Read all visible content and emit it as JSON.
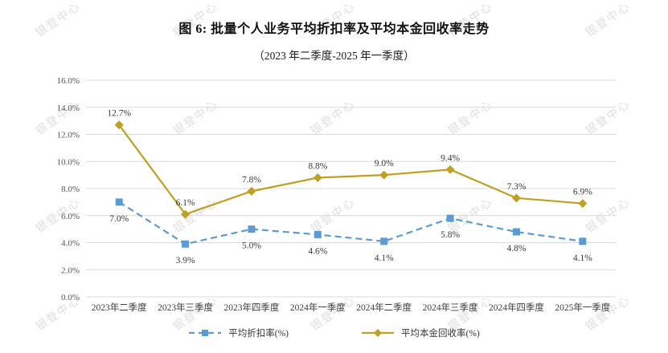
{
  "page": {
    "watermark_text": "银登中心"
  },
  "chart_data": {
    "type": "line",
    "title": "图 6: 批量个人业务平均折扣率及平均本金回收率走势",
    "subtitle": "（2023 年二季度-2025 年一季度）",
    "categories": [
      "2023年二季度",
      "2023年三季度",
      "2023年四季度",
      "2024年一季度",
      "2024年二季度",
      "2024年三季度",
      "2024年四季度",
      "2025年一季度"
    ],
    "series": [
      {
        "name": "平均折扣率(%)",
        "color": "#5B9BD5",
        "style": "dashed",
        "marker": "square",
        "label_position": "below",
        "values": [
          7.0,
          3.9,
          5.0,
          4.6,
          4.1,
          5.8,
          4.8,
          4.1
        ],
        "labels": [
          "7.0%",
          "3.9%",
          "5.0%",
          "4.6%",
          "4.1%",
          "5.8%",
          "4.8%",
          "4.1%"
        ]
      },
      {
        "name": "平均本金回收率(%)",
        "color": "#BFA022",
        "style": "solid",
        "marker": "diamond",
        "label_position": "above",
        "values": [
          12.7,
          6.1,
          7.8,
          8.8,
          9.0,
          9.4,
          7.3,
          6.9
        ],
        "labels": [
          "12.7%",
          "6.1%",
          "7.8%",
          "8.8%",
          "9.0%",
          "9.4%",
          "7.3%",
          "6.9%"
        ]
      }
    ],
    "y_axis": {
      "min": 0,
      "max": 16,
      "step": 2,
      "tick_labels": [
        "0.0%",
        "2.0%",
        "4.0%",
        "6.0%",
        "8.0%",
        "10.0%",
        "12.0%",
        "14.0%",
        "16.0%"
      ]
    },
    "grid": true,
    "legend_position": "bottom",
    "colors": {
      "gridline": "#D9D9D9",
      "watermark": "#ABABAB"
    }
  }
}
